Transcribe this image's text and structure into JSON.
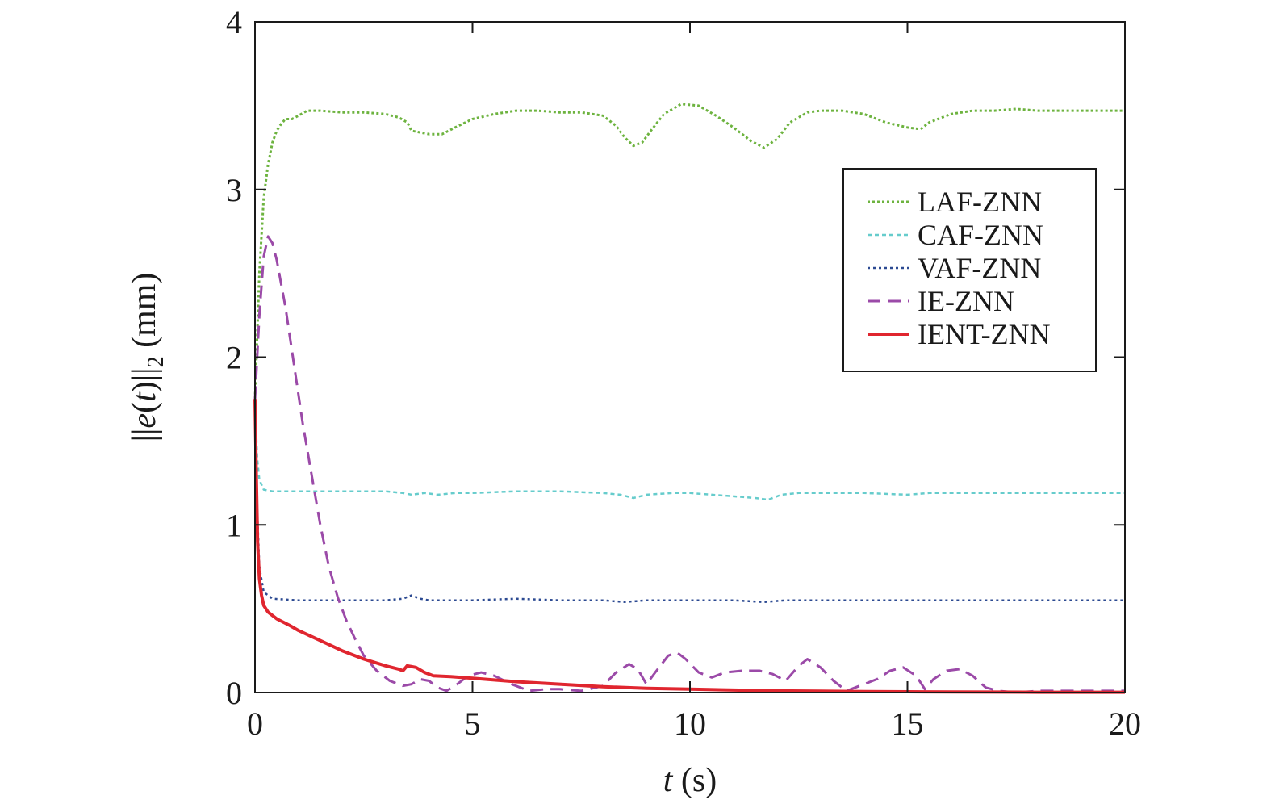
{
  "chart_data": {
    "type": "line",
    "xlabel": {
      "var": "t",
      "unit": " (s)"
    },
    "ylabel": {
      "prefix": "||",
      "var": "e",
      "open": "(",
      "arg": "t",
      "close": ")",
      "bars": "||",
      "sub": "2",
      "unit": " (mm)"
    },
    "xlim": [
      0,
      20
    ],
    "ylim": [
      0,
      4
    ],
    "xticks": [
      0,
      5,
      10,
      15,
      20
    ],
    "yticks": [
      0,
      1,
      2,
      3,
      4
    ],
    "grid": false,
    "legend_position": "top-right",
    "series": [
      {
        "name": "LAF-ZNN",
        "color": "#6db33f",
        "dash": "3,3",
        "width": 3,
        "points": [
          [
            0,
            1.75
          ],
          [
            0.1,
            2.5
          ],
          [
            0.2,
            2.95
          ],
          [
            0.3,
            3.15
          ],
          [
            0.4,
            3.28
          ],
          [
            0.5,
            3.35
          ],
          [
            0.6,
            3.39
          ],
          [
            0.7,
            3.42
          ],
          [
            0.85,
            3.42
          ],
          [
            1.0,
            3.44
          ],
          [
            1.2,
            3.47
          ],
          [
            1.5,
            3.47
          ],
          [
            2.0,
            3.46
          ],
          [
            2.5,
            3.46
          ],
          [
            3.0,
            3.45
          ],
          [
            3.3,
            3.43
          ],
          [
            3.5,
            3.4
          ],
          [
            3.6,
            3.35
          ],
          [
            3.8,
            3.34
          ],
          [
            4.0,
            3.33
          ],
          [
            4.3,
            3.33
          ],
          [
            4.6,
            3.37
          ],
          [
            5.0,
            3.42
          ],
          [
            5.5,
            3.45
          ],
          [
            6.0,
            3.47
          ],
          [
            6.5,
            3.47
          ],
          [
            7.0,
            3.46
          ],
          [
            7.5,
            3.46
          ],
          [
            8.0,
            3.44
          ],
          [
            8.3,
            3.38
          ],
          [
            8.5,
            3.31
          ],
          [
            8.7,
            3.26
          ],
          [
            8.9,
            3.28
          ],
          [
            9.1,
            3.35
          ],
          [
            9.4,
            3.45
          ],
          [
            9.8,
            3.51
          ],
          [
            10.2,
            3.5
          ],
          [
            10.6,
            3.44
          ],
          [
            11.0,
            3.37
          ],
          [
            11.4,
            3.29
          ],
          [
            11.7,
            3.25
          ],
          [
            12.0,
            3.3
          ],
          [
            12.3,
            3.4
          ],
          [
            12.7,
            3.46
          ],
          [
            13.0,
            3.47
          ],
          [
            13.5,
            3.47
          ],
          [
            14.0,
            3.45
          ],
          [
            14.5,
            3.4
          ],
          [
            15.0,
            3.37
          ],
          [
            15.3,
            3.36
          ],
          [
            15.5,
            3.4
          ],
          [
            16.0,
            3.45
          ],
          [
            16.5,
            3.47
          ],
          [
            17.0,
            3.47
          ],
          [
            17.5,
            3.48
          ],
          [
            18.0,
            3.47
          ],
          [
            18.5,
            3.47
          ],
          [
            19.0,
            3.47
          ],
          [
            20.0,
            3.47
          ]
        ]
      },
      {
        "name": "CAF-ZNN",
        "color": "#66cccc",
        "dash": "5,4",
        "width": 2.5,
        "points": [
          [
            0,
            1.73
          ],
          [
            0.05,
            1.4
          ],
          [
            0.1,
            1.27
          ],
          [
            0.2,
            1.21
          ],
          [
            0.4,
            1.2
          ],
          [
            1.0,
            1.2
          ],
          [
            2.0,
            1.2
          ],
          [
            3.0,
            1.2
          ],
          [
            3.4,
            1.19
          ],
          [
            3.6,
            1.18
          ],
          [
            3.9,
            1.19
          ],
          [
            4.2,
            1.18
          ],
          [
            4.6,
            1.19
          ],
          [
            5.0,
            1.19
          ],
          [
            6.0,
            1.2
          ],
          [
            7.0,
            1.2
          ],
          [
            8.0,
            1.19
          ],
          [
            8.4,
            1.18
          ],
          [
            8.7,
            1.16
          ],
          [
            9.0,
            1.18
          ],
          [
            9.6,
            1.19
          ],
          [
            10.0,
            1.19
          ],
          [
            10.5,
            1.18
          ],
          [
            11.0,
            1.17
          ],
          [
            11.5,
            1.16
          ],
          [
            11.8,
            1.15
          ],
          [
            12.1,
            1.18
          ],
          [
            12.5,
            1.19
          ],
          [
            13.0,
            1.19
          ],
          [
            14.0,
            1.19
          ],
          [
            15.0,
            1.18
          ],
          [
            15.5,
            1.19
          ],
          [
            16.0,
            1.19
          ],
          [
            17.0,
            1.19
          ],
          [
            18.0,
            1.19
          ],
          [
            19.0,
            1.19
          ],
          [
            20.0,
            1.19
          ]
        ]
      },
      {
        "name": "VAF-ZNN",
        "color": "#2c4a92",
        "dash": "3,4",
        "width": 2.5,
        "points": [
          [
            0,
            1.73
          ],
          [
            0.05,
            1.1
          ],
          [
            0.1,
            0.75
          ],
          [
            0.2,
            0.6
          ],
          [
            0.4,
            0.56
          ],
          [
            1.0,
            0.55
          ],
          [
            2.0,
            0.55
          ],
          [
            3.0,
            0.55
          ],
          [
            3.4,
            0.56
          ],
          [
            3.6,
            0.58
          ],
          [
            3.8,
            0.56
          ],
          [
            4.0,
            0.55
          ],
          [
            5.0,
            0.55
          ],
          [
            6.0,
            0.56
          ],
          [
            7.0,
            0.55
          ],
          [
            8.0,
            0.55
          ],
          [
            8.5,
            0.54
          ],
          [
            9.0,
            0.55
          ],
          [
            10.0,
            0.55
          ],
          [
            11.0,
            0.55
          ],
          [
            11.7,
            0.54
          ],
          [
            12.2,
            0.55
          ],
          [
            13.0,
            0.55
          ],
          [
            14.0,
            0.55
          ],
          [
            15.0,
            0.55
          ],
          [
            16.0,
            0.55
          ],
          [
            17.0,
            0.55
          ],
          [
            18.0,
            0.55
          ],
          [
            19.0,
            0.55
          ],
          [
            20.0,
            0.55
          ]
        ]
      },
      {
        "name": "IE-ZNN",
        "color": "#9b4aa8",
        "dash": "16,9",
        "width": 3,
        "points": [
          [
            0,
            1.75
          ],
          [
            0.1,
            2.25
          ],
          [
            0.2,
            2.6
          ],
          [
            0.3,
            2.72
          ],
          [
            0.4,
            2.68
          ],
          [
            0.5,
            2.58
          ],
          [
            0.7,
            2.3
          ],
          [
            0.9,
            1.95
          ],
          [
            1.1,
            1.6
          ],
          [
            1.3,
            1.3
          ],
          [
            1.5,
            1.0
          ],
          [
            1.7,
            0.75
          ],
          [
            1.9,
            0.57
          ],
          [
            2.1,
            0.43
          ],
          [
            2.3,
            0.32
          ],
          [
            2.5,
            0.22
          ],
          [
            2.8,
            0.13
          ],
          [
            3.1,
            0.07
          ],
          [
            3.4,
            0.04
          ],
          [
            3.6,
            0.05
          ],
          [
            3.8,
            0.08
          ],
          [
            4.0,
            0.07
          ],
          [
            4.2,
            0.03
          ],
          [
            4.4,
            0.01
          ],
          [
            4.6,
            0.04
          ],
          [
            4.9,
            0.1
          ],
          [
            5.2,
            0.12
          ],
          [
            5.5,
            0.1
          ],
          [
            5.9,
            0.05
          ],
          [
            6.3,
            0.01
          ],
          [
            6.7,
            0.02
          ],
          [
            7.0,
            0.02
          ],
          [
            7.5,
            0.01
          ],
          [
            8.0,
            0.04
          ],
          [
            8.3,
            0.12
          ],
          [
            8.6,
            0.17
          ],
          [
            8.8,
            0.14
          ],
          [
            9.0,
            0.05
          ],
          [
            9.2,
            0.12
          ],
          [
            9.5,
            0.22
          ],
          [
            9.7,
            0.24
          ],
          [
            9.9,
            0.2
          ],
          [
            10.2,
            0.12
          ],
          [
            10.5,
            0.09
          ],
          [
            10.8,
            0.12
          ],
          [
            11.2,
            0.13
          ],
          [
            11.6,
            0.13
          ],
          [
            11.9,
            0.11
          ],
          [
            12.2,
            0.07
          ],
          [
            12.5,
            0.16
          ],
          [
            12.7,
            0.2
          ],
          [
            13.0,
            0.15
          ],
          [
            13.3,
            0.07
          ],
          [
            13.6,
            0.01
          ],
          [
            13.9,
            0.04
          ],
          [
            14.3,
            0.08
          ],
          [
            14.6,
            0.13
          ],
          [
            14.9,
            0.15
          ],
          [
            15.2,
            0.1
          ],
          [
            15.4,
            0.02
          ],
          [
            15.6,
            0.08
          ],
          [
            15.9,
            0.13
          ],
          [
            16.2,
            0.14
          ],
          [
            16.5,
            0.1
          ],
          [
            16.8,
            0.03
          ],
          [
            17.1,
            0.01
          ],
          [
            17.5,
            0.0
          ],
          [
            18.0,
            0.01
          ],
          [
            18.5,
            0.01
          ],
          [
            19.0,
            0.01
          ],
          [
            19.5,
            0.01
          ],
          [
            20.0,
            0.01
          ]
        ]
      },
      {
        "name": "IENT-ZNN",
        "color": "#e0262f",
        "dash": "",
        "width": 4,
        "points": [
          [
            0,
            1.75
          ],
          [
            0.03,
            1.3
          ],
          [
            0.06,
            0.9
          ],
          [
            0.1,
            0.68
          ],
          [
            0.15,
            0.58
          ],
          [
            0.2,
            0.52
          ],
          [
            0.3,
            0.48
          ],
          [
            0.5,
            0.44
          ],
          [
            0.8,
            0.4
          ],
          [
            1.0,
            0.37
          ],
          [
            1.5,
            0.31
          ],
          [
            2.0,
            0.25
          ],
          [
            2.5,
            0.2
          ],
          [
            3.0,
            0.16
          ],
          [
            3.3,
            0.14
          ],
          [
            3.4,
            0.13
          ],
          [
            3.5,
            0.16
          ],
          [
            3.7,
            0.15
          ],
          [
            3.9,
            0.12
          ],
          [
            4.1,
            0.1
          ],
          [
            4.5,
            0.095
          ],
          [
            5.0,
            0.085
          ],
          [
            6.0,
            0.065
          ],
          [
            7.0,
            0.05
          ],
          [
            8.0,
            0.035
          ],
          [
            9.0,
            0.025
          ],
          [
            10.0,
            0.02
          ],
          [
            11.0,
            0.015
          ],
          [
            12.0,
            0.01
          ],
          [
            13.0,
            0.008
          ],
          [
            14.0,
            0.006
          ],
          [
            15.0,
            0.005
          ],
          [
            16.0,
            0.004
          ],
          [
            17.0,
            0.003
          ],
          [
            18.0,
            0.002
          ],
          [
            19.0,
            0.002
          ],
          [
            20.0,
            0.002
          ]
        ]
      }
    ]
  }
}
